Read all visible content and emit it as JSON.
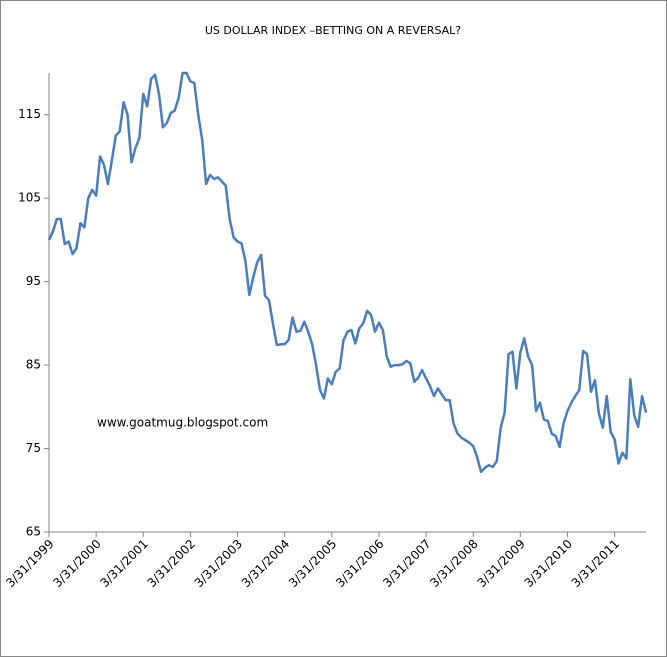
{
  "chart_data": {
    "type": "line",
    "title": "US DOLLAR INDEX –BETTING ON A REVERSAL?",
    "annotation": "www.goatmug.blogspot.com",
    "categories": [
      "3/31/1999",
      null,
      null,
      null,
      null,
      null,
      null,
      null,
      null,
      null,
      null,
      null,
      "3/31/2000",
      null,
      null,
      null,
      null,
      null,
      null,
      null,
      null,
      null,
      null,
      null,
      "3/31/2001",
      null,
      null,
      null,
      null,
      null,
      null,
      null,
      null,
      null,
      null,
      null,
      "3/31/2002",
      null,
      null,
      null,
      null,
      null,
      null,
      null,
      null,
      null,
      null,
      null,
      "3/31/2003",
      null,
      null,
      null,
      null,
      null,
      null,
      null,
      null,
      null,
      null,
      null,
      "3/31/2004",
      null,
      null,
      null,
      null,
      null,
      null,
      null,
      null,
      null,
      null,
      null,
      "3/31/2005",
      null,
      null,
      null,
      null,
      null,
      null,
      null,
      null,
      null,
      null,
      null,
      "3/31/2006",
      null,
      null,
      null,
      null,
      null,
      null,
      null,
      null,
      null,
      null,
      null,
      "3/31/2007",
      null,
      null,
      null,
      null,
      null,
      null,
      null,
      null,
      null,
      null,
      null,
      "3/31/2008",
      null,
      null,
      null,
      null,
      null,
      null,
      null,
      null,
      null,
      null,
      null,
      "3/31/2009",
      null,
      null,
      null,
      null,
      null,
      null,
      null,
      null,
      null,
      null,
      null,
      "3/31/2010",
      null,
      null,
      null,
      null,
      null,
      null,
      null,
      null,
      null,
      null,
      null,
      "3/31/2011",
      null,
      null,
      null,
      null,
      null,
      null,
      null,
      null
    ],
    "values": [
      100,
      101,
      102.5,
      102.5,
      99.5,
      99.8,
      98.3,
      99,
      102,
      101.5,
      105,
      106,
      105.3,
      110,
      109,
      106.7,
      109.5,
      112.5,
      113,
      116.5,
      115,
      109.3,
      111,
      112.2,
      117.5,
      116,
      119.3,
      119.8,
      117.5,
      113.5,
      114,
      115.2,
      115.5,
      117,
      120,
      120,
      119,
      118.8,
      115,
      112,
      106.7,
      107.8,
      107.3,
      107.5,
      107,
      106.5,
      102.5,
      100.3,
      99.8,
      99.6,
      97.5,
      93.4,
      95.5,
      97.3,
      98.2,
      93.3,
      92.8,
      90,
      87.4,
      87.5,
      87.5,
      88,
      90.7,
      89,
      89.1,
      90.2,
      89,
      87.5,
      85,
      82,
      81,
      83.4,
      82.7,
      84.2,
      84.6,
      88,
      89,
      89.2,
      87.6,
      89.4,
      90,
      91.5,
      91,
      89,
      90.1,
      89.2,
      86,
      84.8,
      85,
      85,
      85.1,
      85.5,
      85.2,
      83,
      83.5,
      84.4,
      83.4,
      82.5,
      81.3,
      82.2,
      81.5,
      80.8,
      80.8,
      78,
      76.8,
      76.3,
      76,
      75.7,
      75.3,
      74,
      72.2,
      72.7,
      73,
      72.8,
      73.5,
      77.5,
      79.3,
      86.3,
      86.6,
      82.2,
      86.5,
      88.2,
      86,
      85,
      79.5,
      80.5,
      78.5,
      78.3,
      76.8,
      76.5,
      75.2,
      78,
      79.5,
      80.5,
      81.3,
      82,
      86.7,
      86.3,
      81.8,
      83.2,
      79.2,
      77.5,
      81.3,
      77,
      76.1,
      73.2,
      74.5,
      73.8,
      83.3,
      79,
      77.6,
      81.3,
      79.3
    ],
    "color": "#4a7ebb",
    "ylim": [
      65,
      120
    ],
    "yticks": [
      65,
      75,
      85,
      95,
      105,
      115
    ],
    "grid": false
  }
}
